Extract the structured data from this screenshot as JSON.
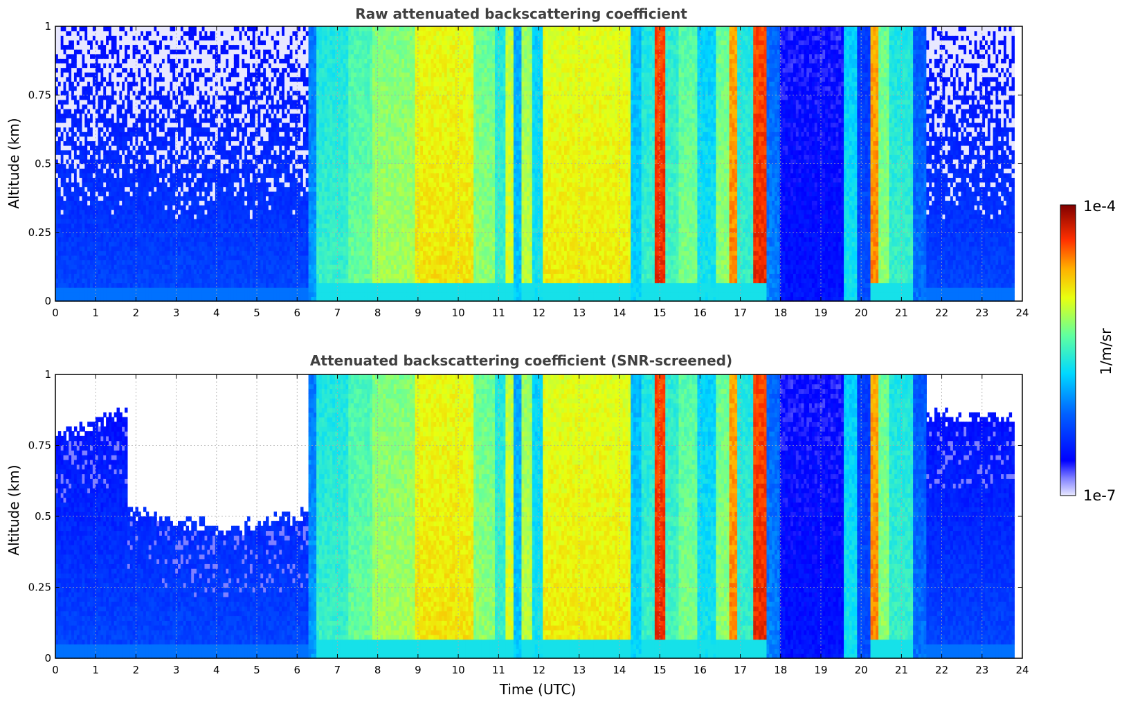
{
  "chart_data": [
    {
      "type": "heatmap",
      "title": "Raw attenuated backscattering coefficient",
      "xlabel": "",
      "ylabel": "Altitude (km)",
      "xlim": [
        0,
        24
      ],
      "ylim": [
        0,
        1
      ],
      "x_ticks": [
        "0",
        "1",
        "2",
        "3",
        "4",
        "5",
        "6",
        "7",
        "8",
        "9",
        "10",
        "11",
        "12",
        "13",
        "14",
        "15",
        "16",
        "17",
        "18",
        "19",
        "20",
        "21",
        "22",
        "23",
        "24"
      ],
      "y_ticks": [
        "0",
        "0.25",
        "0.5",
        "0.75",
        "1"
      ],
      "y_tick_values": [
        0,
        0.25,
        0.5,
        0.75,
        1
      ],
      "grid": true,
      "screened": false
    },
    {
      "type": "heatmap",
      "title": "Attenuated backscattering coefficient (SNR-screened)",
      "xlabel": "Time (UTC)",
      "ylabel": "Altitude (km)",
      "xlim": [
        0,
        24
      ],
      "ylim": [
        0,
        1
      ],
      "x_ticks": [
        "0",
        "1",
        "2",
        "3",
        "4",
        "5",
        "6",
        "7",
        "8",
        "9",
        "10",
        "11",
        "12",
        "13",
        "14",
        "15",
        "16",
        "17",
        "18",
        "19",
        "20",
        "21",
        "22",
        "23",
        "24"
      ],
      "y_ticks": [
        "0",
        "0.25",
        "0.5",
        "0.75",
        "1"
      ],
      "y_tick_values": [
        0,
        0.25,
        0.5,
        0.75,
        1
      ],
      "grid": true,
      "screened": true
    }
  ],
  "colorbar": {
    "label": "1/m/sr",
    "max_label": "1e-4",
    "min_label": "1e-7",
    "colormap": "jet",
    "scale": "log"
  },
  "data_extent_hours": 23.8,
  "cloud_segments": [
    {
      "start": 6.3,
      "end": 6.5,
      "level": 0.35
    },
    {
      "start": 6.5,
      "end": 7.3,
      "level": 0.5
    },
    {
      "start": 7.3,
      "end": 7.9,
      "level": 0.56
    },
    {
      "start": 7.9,
      "end": 8.9,
      "level": 0.62
    },
    {
      "start": 8.9,
      "end": 10.4,
      "level": 0.72
    },
    {
      "start": 10.4,
      "end": 10.9,
      "level": 0.6
    },
    {
      "start": 10.9,
      "end": 11.2,
      "level": 0.5
    },
    {
      "start": 11.2,
      "end": 11.4,
      "level": 0.68
    },
    {
      "start": 11.4,
      "end": 11.6,
      "level": 0.4
    },
    {
      "start": 11.6,
      "end": 11.85,
      "level": 0.64
    },
    {
      "start": 11.85,
      "end": 12.1,
      "level": 0.45
    },
    {
      "start": 12.1,
      "end": 14.3,
      "level": 0.71
    },
    {
      "start": 14.3,
      "end": 14.55,
      "level": 0.42
    },
    {
      "start": 14.55,
      "end": 14.9,
      "level": 0.5
    },
    {
      "start": 14.9,
      "end": 15.15,
      "level": 0.9
    },
    {
      "start": 15.15,
      "end": 15.5,
      "level": 0.52
    },
    {
      "start": 15.5,
      "end": 15.9,
      "level": 0.58
    },
    {
      "start": 15.9,
      "end": 16.4,
      "level": 0.45
    },
    {
      "start": 16.4,
      "end": 16.7,
      "level": 0.6
    },
    {
      "start": 16.7,
      "end": 16.95,
      "level": 0.82
    },
    {
      "start": 16.95,
      "end": 17.35,
      "level": 0.5
    },
    {
      "start": 17.35,
      "end": 17.65,
      "level": 0.9
    },
    {
      "start": 17.65,
      "end": 18.0,
      "level": 0.32
    },
    {
      "start": 18.0,
      "end": 19.6,
      "level": 0.15
    },
    {
      "start": 19.6,
      "end": 19.9,
      "level": 0.45
    },
    {
      "start": 19.9,
      "end": 20.2,
      "level": 0.25
    },
    {
      "start": 20.2,
      "end": 20.4,
      "level": 0.82
    },
    {
      "start": 20.4,
      "end": 20.7,
      "level": 0.6
    },
    {
      "start": 20.7,
      "end": 21.3,
      "level": 0.5
    },
    {
      "start": 21.3,
      "end": 21.6,
      "level": 0.3
    }
  ]
}
